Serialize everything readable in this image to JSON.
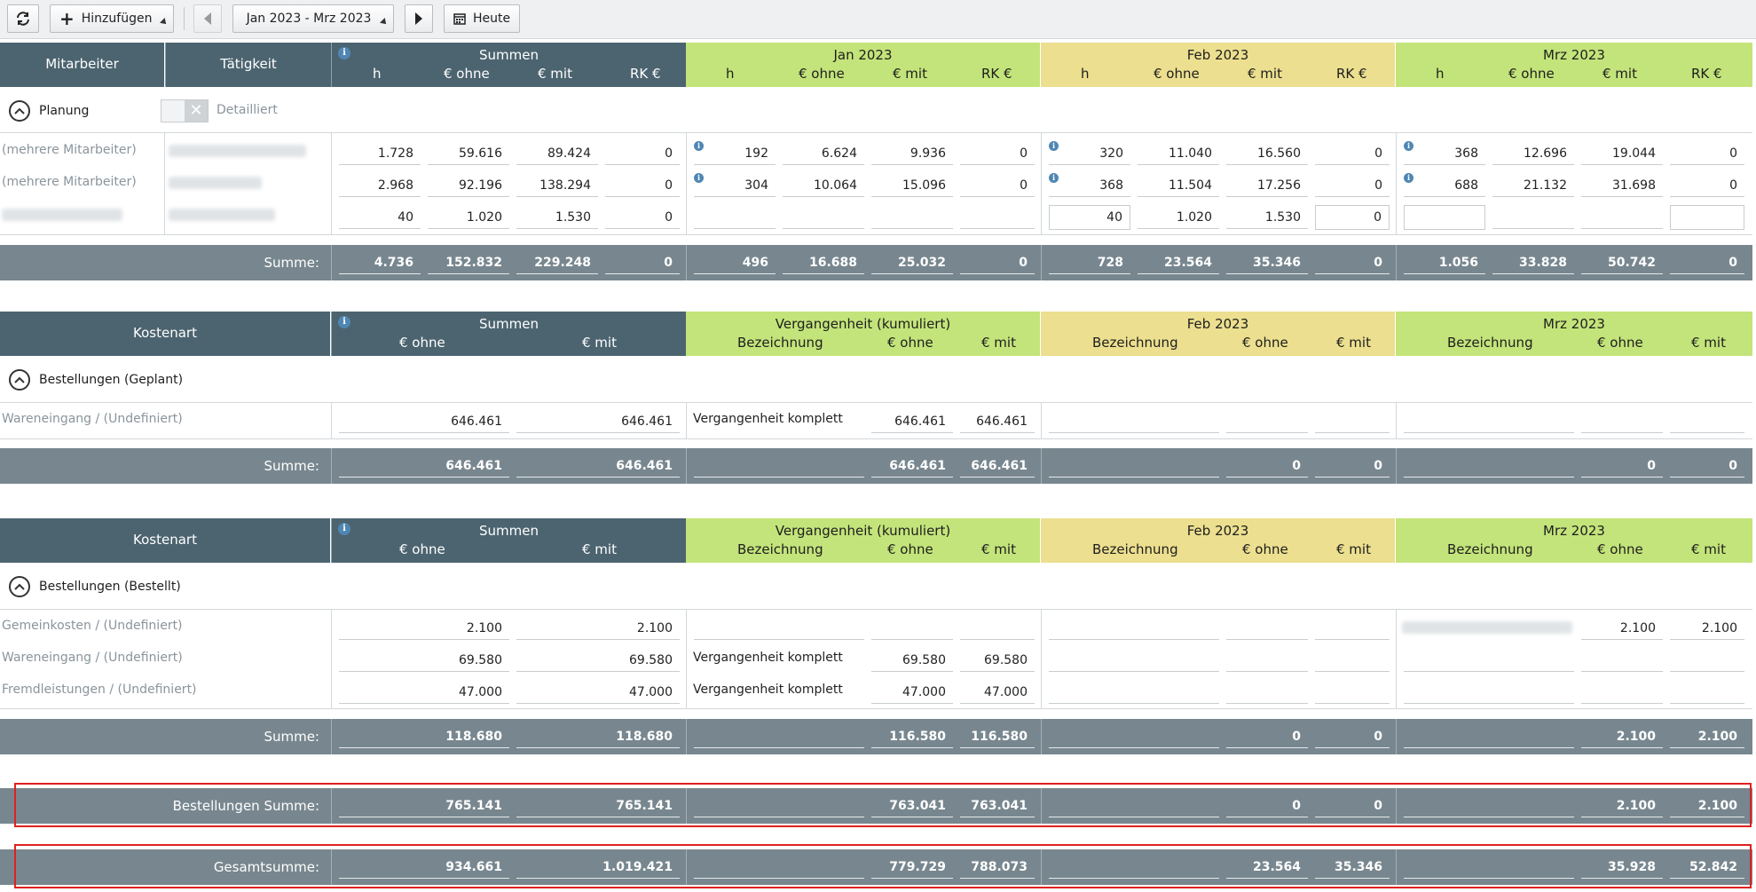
{
  "toolbar": {
    "refresh_icon": "refresh-icon",
    "add_label": "Hinzufügen",
    "period_label": "Jan 2023 - Mrz 2023",
    "today_label": "Heute"
  },
  "planung": {
    "headers": {
      "mitarbeiter": "Mitarbeiter",
      "taetigkeit": "Tätigkeit",
      "summen": "Summen",
      "h": "h",
      "eur_ohne": "€ ohne",
      "eur_mit": "€ mit",
      "rk": "RK €",
      "jan": "Jan 2023",
      "feb": "Feb 2023",
      "mrz": "Mrz 2023"
    },
    "section_label": "Planung",
    "toggle_label": "Detailliert",
    "rows": [
      {
        "mitarbeiter": "(mehrere Mitarbeiter)",
        "sum": [
          "1.728",
          "59.616",
          "89.424",
          "0"
        ],
        "jan": [
          "192",
          "6.624",
          "9.936",
          "0"
        ],
        "feb": [
          "320",
          "11.040",
          "16.560",
          "0"
        ],
        "mrz": [
          "368",
          "12.696",
          "19.044",
          "0"
        ]
      },
      {
        "mitarbeiter": "(mehrere Mitarbeiter)",
        "sum": [
          "2.968",
          "92.196",
          "138.294",
          "0"
        ],
        "jan": [
          "304",
          "10.064",
          "15.096",
          "0"
        ],
        "feb": [
          "368",
          "11.504",
          "17.256",
          "0"
        ],
        "mrz": [
          "688",
          "21.132",
          "31.698",
          "0"
        ]
      },
      {
        "mitarbeiter": "",
        "sum": [
          "40",
          "1.020",
          "1.530",
          "0"
        ],
        "jan": [
          "",
          "",
          "",
          ""
        ],
        "feb": [
          "40",
          "1.020",
          "1.530",
          "0"
        ],
        "mrz": [
          "",
          "",
          "",
          ""
        ]
      }
    ],
    "summe_label": "Summe:",
    "summe": {
      "sum": [
        "4.736",
        "152.832",
        "229.248",
        "0"
      ],
      "jan": [
        "496",
        "16.688",
        "25.032",
        "0"
      ],
      "feb": [
        "728",
        "23.564",
        "35.346",
        "0"
      ],
      "mrz": [
        "1.056",
        "33.828",
        "50.742",
        "0"
      ]
    }
  },
  "geplant": {
    "headers": {
      "kostenart": "Kostenart",
      "summen": "Summen",
      "eur_ohne": "€ ohne",
      "eur_mit": "€ mit",
      "vergangenheit": "Vergangenheit (kumuliert)",
      "bezeichnung": "Bezeichnung",
      "feb": "Feb 2023",
      "mrz": "Mrz 2023"
    },
    "section_label": "Bestellungen (Geplant)",
    "rows": [
      {
        "kostenart": "Wareneingang / (Undefiniert)",
        "sum": [
          "646.461",
          "646.461"
        ],
        "verg": [
          "Vergangenheit komplett",
          "646.461",
          "646.461"
        ],
        "feb": [
          "",
          "",
          ""
        ],
        "mrz": [
          "",
          "",
          ""
        ]
      }
    ],
    "summe_label": "Summe:",
    "summe": {
      "sum": [
        "646.461",
        "646.461"
      ],
      "verg": [
        "",
        "646.461",
        "646.461"
      ],
      "feb": [
        "",
        "0",
        "0"
      ],
      "mrz": [
        "",
        "0",
        "0"
      ]
    }
  },
  "bestellt": {
    "headers": {
      "kostenart": "Kostenart",
      "summen": "Summen",
      "eur_ohne": "€ ohne",
      "eur_mit": "€ mit",
      "vergangenheit": "Vergangenheit (kumuliert)",
      "bezeichnung": "Bezeichnung",
      "feb": "Feb 2023",
      "mrz": "Mrz 2023"
    },
    "section_label": "Bestellungen (Bestellt)",
    "rows": [
      {
        "kostenart": "Gemeinkosten / (Undefiniert)",
        "sum": [
          "2.100",
          "2.100"
        ],
        "verg": [
          "",
          "",
          ""
        ],
        "feb": [
          "",
          "",
          ""
        ],
        "mrz": [
          "",
          "2.100",
          "2.100"
        ]
      },
      {
        "kostenart": "Wareneingang / (Undefiniert)",
        "sum": [
          "69.580",
          "69.580"
        ],
        "verg": [
          "Vergangenheit komplett",
          "69.580",
          "69.580"
        ],
        "feb": [
          "",
          "",
          ""
        ],
        "mrz": [
          "",
          "",
          ""
        ]
      },
      {
        "kostenart": "Fremdleistungen / (Undefiniert)",
        "sum": [
          "47.000",
          "47.000"
        ],
        "verg": [
          "Vergangenheit komplett",
          "47.000",
          "47.000"
        ],
        "feb": [
          "",
          "",
          ""
        ],
        "mrz": [
          "",
          "",
          ""
        ]
      }
    ],
    "summe_label": "Summe:",
    "summe": {
      "sum": [
        "118.680",
        "118.680"
      ],
      "verg": [
        "",
        "116.580",
        "116.580"
      ],
      "feb": [
        "",
        "0",
        "0"
      ],
      "mrz": [
        "",
        "2.100",
        "2.100"
      ]
    }
  },
  "bestellungen_summe": {
    "label": "Bestellungen Summe:",
    "sum": [
      "765.141",
      "765.141"
    ],
    "verg": [
      "",
      "763.041",
      "763.041"
    ],
    "feb": [
      "",
      "0",
      "0"
    ],
    "mrz": [
      "",
      "2.100",
      "2.100"
    ]
  },
  "gesamtsumme": {
    "label": "Gesamtsumme:",
    "sum": [
      "934.661",
      "1.019.421"
    ],
    "verg": [
      "",
      "779.729",
      "788.073"
    ],
    "feb": [
      "",
      "23.564",
      "35.346"
    ],
    "mrz": [
      "",
      "35.928",
      "52.842"
    ]
  },
  "colors": {
    "header_dark": "#4c6470",
    "jan_green": "#c3e47a",
    "feb_yellow": "#ecdf8f",
    "sum_bar": "#78878f",
    "highlight_red": "#e02020",
    "info_blue": "#4f86b3"
  }
}
